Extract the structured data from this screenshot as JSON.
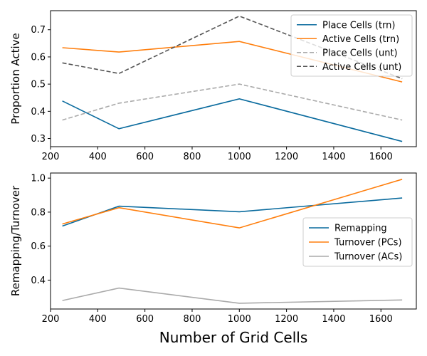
{
  "chart_data": [
    {
      "type": "line",
      "title": "",
      "xlabel": "",
      "ylabel": "Proportion Active",
      "xlim": [
        200,
        1750
      ],
      "ylim": [
        0.27,
        0.77
      ],
      "xticks": [
        200,
        400,
        600,
        800,
        1000,
        1200,
        1400,
        1600
      ],
      "yticks": [
        0.3,
        0.4,
        0.5,
        0.6,
        0.7
      ],
      "ytick_labels": [
        "0.3",
        "0.4",
        "0.5",
        "0.6",
        "0.7"
      ],
      "x": [
        250,
        490,
        1000,
        1690
      ],
      "legend_position": "upper-right",
      "series": [
        {
          "name": "Place Cells (trn)",
          "values": [
            0.438,
            0.336,
            0.446,
            0.289
          ],
          "color": "#0a6b9e",
          "dash": "solid"
        },
        {
          "name": "Active Cells (trn)",
          "values": [
            0.634,
            0.618,
            0.657,
            0.508
          ],
          "color": "#ff7f0e",
          "dash": "solid"
        },
        {
          "name": "Place Cells (unt)",
          "values": [
            0.368,
            0.43,
            0.5,
            0.368
          ],
          "color": "#aaaaaa",
          "dash": "dashed"
        },
        {
          "name": "Active Cells (unt)",
          "values": [
            0.578,
            0.539,
            0.75,
            0.52
          ],
          "color": "#555555",
          "dash": "dashed"
        }
      ]
    },
    {
      "type": "line",
      "title": "",
      "xlabel": "Number of Grid Cells",
      "ylabel": "Remapping/Turnover",
      "xlim": [
        200,
        1750
      ],
      "ylim": [
        0.23,
        1.03
      ],
      "xticks": [
        200,
        400,
        600,
        800,
        1000,
        1200,
        1400,
        1600
      ],
      "yticks": [
        0.4,
        0.6,
        0.8,
        1.0
      ],
      "ytick_labels": [
        "0.4",
        "0.6",
        "0.8",
        "1.0"
      ],
      "x": [
        250,
        490,
        1000,
        1690
      ],
      "legend_position": "center-right",
      "series": [
        {
          "name": "Remapping",
          "values": [
            0.718,
            0.835,
            0.802,
            0.883
          ],
          "color": "#0a6b9e",
          "dash": "solid"
        },
        {
          "name": "Turnover (PCs)",
          "values": [
            0.73,
            0.826,
            0.707,
            0.993
          ],
          "color": "#ff7f0e",
          "dash": "solid"
        },
        {
          "name": "Turnover (ACs)",
          "values": [
            0.28,
            0.353,
            0.264,
            0.283
          ],
          "color": "#aaaaaa",
          "dash": "solid"
        }
      ]
    }
  ]
}
